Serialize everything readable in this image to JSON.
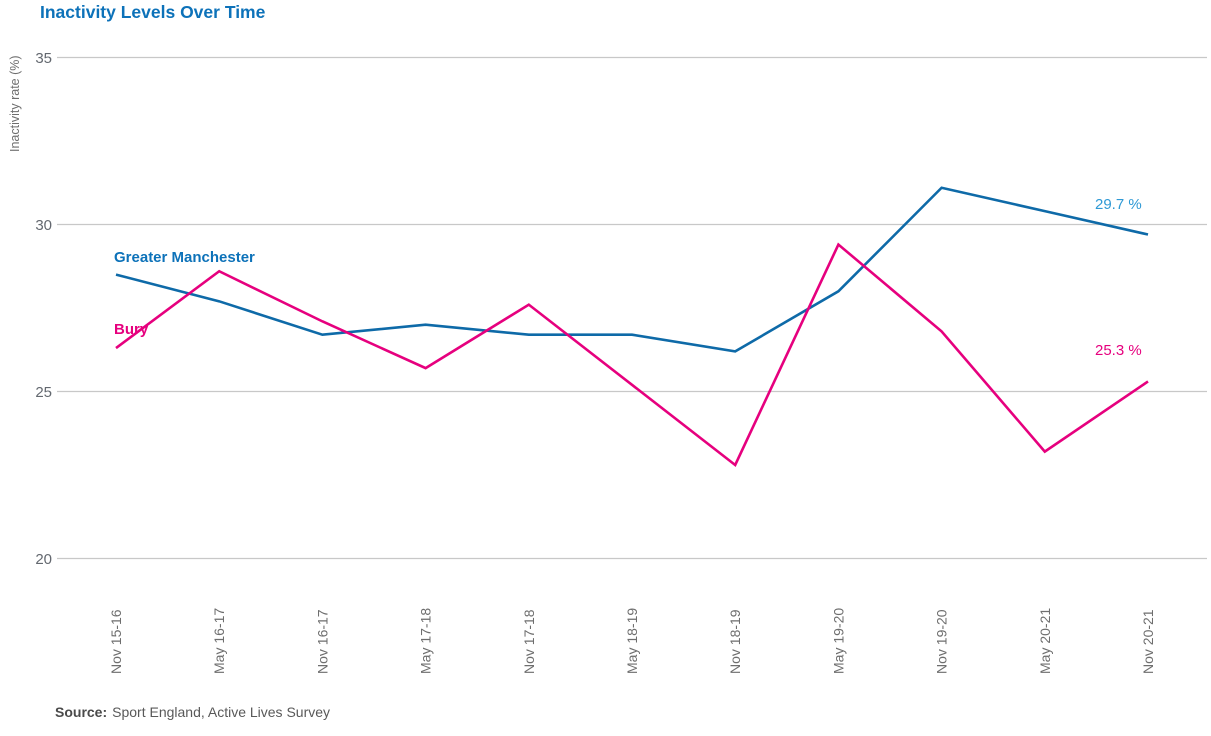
{
  "title": "Inactivity Levels Over Time",
  "y_axis_label": "Inactivity rate (%)",
  "source": {
    "prefix": "Source:",
    "text": "Sport England, Active Lives Survey"
  },
  "colors": {
    "title_blue": "#0d72b9",
    "greater_manchester_line": "#0e6aa8",
    "greater_manchester_value_label": "#2e99d5",
    "bury_pink": "#e6007e",
    "gridline": "#c8c8c8",
    "axis_text": "#63686f",
    "source_text": "#595959"
  },
  "chart_data": {
    "type": "line",
    "title": "Inactivity Levels Over Time",
    "xlabel": "",
    "ylabel": "Inactivity rate (%)",
    "categories": [
      "Nov 15-16",
      "May 16-17",
      "Nov 16-17",
      "May 17-18",
      "Nov 17-18",
      "May 18-19",
      "Nov 18-19",
      "May 19-20",
      "Nov 19-20",
      "May 20-21",
      "Nov 20-21"
    ],
    "series": [
      {
        "name": "Greater Manchester",
        "color": "#0e6aa8",
        "values": [
          28.5,
          27.7,
          26.7,
          27.0,
          26.7,
          26.7,
          26.2,
          28.0,
          31.1,
          30.4,
          29.7
        ],
        "end_label": "29.7 %"
      },
      {
        "name": "Bury",
        "color": "#e6007e",
        "values": [
          26.3,
          28.6,
          27.1,
          25.7,
          27.6,
          25.2,
          22.8,
          29.4,
          26.8,
          23.2,
          25.3
        ],
        "end_label": "25.3 %"
      }
    ],
    "yticks": [
      35,
      30,
      25,
      20
    ],
    "ylim": [
      20,
      35
    ],
    "grid": "horizontal-only",
    "legend": "inline-series-labels",
    "source": "Sport England, Active Lives Survey"
  }
}
